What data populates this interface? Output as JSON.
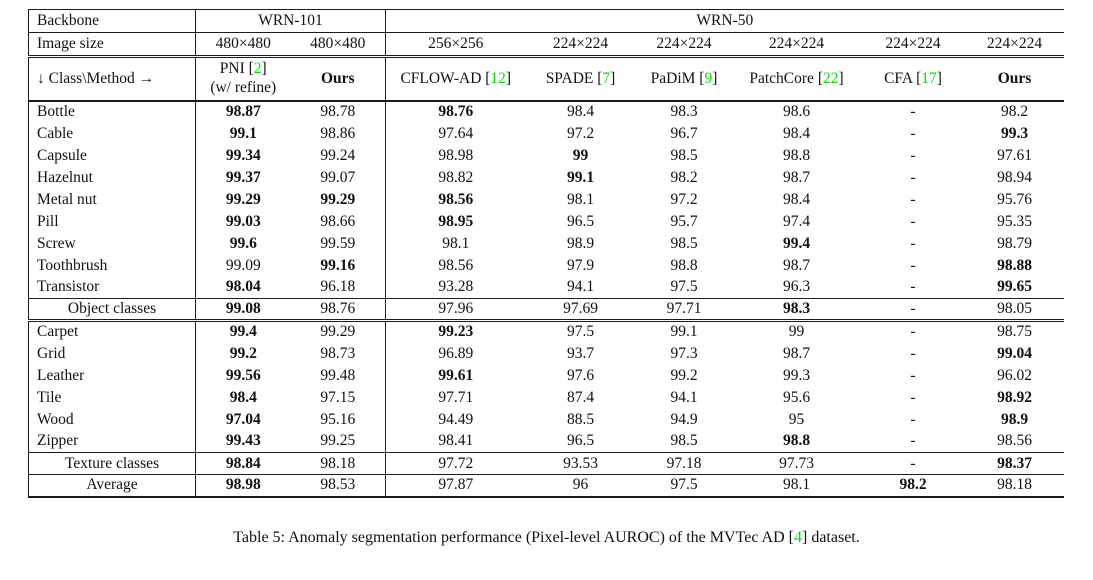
{
  "colors": {
    "citation_green": "#00dd00"
  },
  "table": {
    "header": {
      "backbone_label": "Backbone",
      "backbone_groups": [
        {
          "label": "WRN-101",
          "span": 2
        },
        {
          "label": "WRN-50",
          "span": 6
        }
      ],
      "image_size_label": "Image size",
      "image_sizes": [
        "480×480",
        "480×480",
        "256×256",
        "224×224",
        "224×224",
        "224×224",
        "224×224",
        "224×224"
      ],
      "class_method_label": "↓ Class\\Method →",
      "methods": [
        {
          "label": "PNI",
          "cite": "2",
          "extra": "(w/ refine)",
          "bold": false
        },
        {
          "label": "Ours",
          "cite": "",
          "extra": "",
          "bold": true
        },
        {
          "label": "CFLOW-AD",
          "cite": "12",
          "extra": "",
          "bold": false
        },
        {
          "label": "SPADE",
          "cite": "7",
          "extra": "",
          "bold": false
        },
        {
          "label": "PaDiM",
          "cite": "9",
          "extra": "",
          "bold": false
        },
        {
          "label": "PatchCore",
          "cite": "22",
          "extra": "",
          "bold": false
        },
        {
          "label": "CFA",
          "cite": "17",
          "extra": "",
          "bold": false
        },
        {
          "label": "Ours",
          "cite": "",
          "extra": "",
          "bold": true
        }
      ]
    },
    "rows": [
      {
        "label": "Bottle",
        "kind": "class",
        "sep": "",
        "values": [
          "98.87",
          "98.78",
          "98.76",
          "98.4",
          "98.3",
          "98.6",
          "-",
          "98.2"
        ],
        "bold": [
          1,
          0,
          1,
          0,
          0,
          0,
          0,
          0
        ]
      },
      {
        "label": "Cable",
        "kind": "class",
        "sep": "",
        "values": [
          "99.1",
          "98.86",
          "97.64",
          "97.2",
          "96.7",
          "98.4",
          "-",
          "99.3"
        ],
        "bold": [
          1,
          0,
          0,
          0,
          0,
          0,
          0,
          1
        ]
      },
      {
        "label": "Capsule",
        "kind": "class",
        "sep": "",
        "values": [
          "99.34",
          "99.24",
          "98.98",
          "99",
          "98.5",
          "98.8",
          "-",
          "97.61"
        ],
        "bold": [
          1,
          0,
          0,
          1,
          0,
          0,
          0,
          0
        ]
      },
      {
        "label": "Hazelnut",
        "kind": "class",
        "sep": "",
        "values": [
          "99.37",
          "99.07",
          "98.82",
          "99.1",
          "98.2",
          "98.7",
          "-",
          "98.94"
        ],
        "bold": [
          1,
          0,
          0,
          1,
          0,
          0,
          0,
          0
        ]
      },
      {
        "label": "Metal nut",
        "kind": "class",
        "sep": "",
        "values": [
          "99.29",
          "99.29",
          "98.56",
          "98.1",
          "97.2",
          "98.4",
          "-",
          "95.76"
        ],
        "bold": [
          1,
          1,
          1,
          0,
          0,
          0,
          0,
          0
        ]
      },
      {
        "label": "Pill",
        "kind": "class",
        "sep": "",
        "values": [
          "99.03",
          "98.66",
          "98.95",
          "96.5",
          "95.7",
          "97.4",
          "-",
          "95.35"
        ],
        "bold": [
          1,
          0,
          1,
          0,
          0,
          0,
          0,
          0
        ]
      },
      {
        "label": "Screw",
        "kind": "class",
        "sep": "",
        "values": [
          "99.6",
          "99.59",
          "98.1",
          "98.9",
          "98.5",
          "99.4",
          "-",
          "98.79"
        ],
        "bold": [
          1,
          0,
          0,
          0,
          0,
          1,
          0,
          0
        ]
      },
      {
        "label": "Toothbrush",
        "kind": "class",
        "sep": "",
        "values": [
          "99.09",
          "99.16",
          "98.56",
          "97.9",
          "98.8",
          "98.7",
          "-",
          "98.88"
        ],
        "bold": [
          0,
          1,
          0,
          0,
          0,
          0,
          0,
          1
        ]
      },
      {
        "label": "Transistor",
        "kind": "class",
        "sep": "thin",
        "values": [
          "98.04",
          "96.18",
          "93.28",
          "94.1",
          "97.5",
          "96.3",
          "-",
          "99.65"
        ],
        "bold": [
          1,
          0,
          0,
          0,
          0,
          0,
          0,
          1
        ]
      },
      {
        "label": "Object classes",
        "kind": "summary",
        "sep": "double",
        "values": [
          "99.08",
          "98.76",
          "97.96",
          "97.69",
          "97.71",
          "98.3",
          "-",
          "98.05"
        ],
        "bold": [
          1,
          0,
          0,
          0,
          0,
          1,
          0,
          0
        ]
      },
      {
        "label": "Carpet",
        "kind": "class",
        "sep": "",
        "values": [
          "99.4",
          "99.29",
          "99.23",
          "97.5",
          "99.1",
          "99",
          "-",
          "98.75"
        ],
        "bold": [
          1,
          0,
          1,
          0,
          0,
          0,
          0,
          0
        ]
      },
      {
        "label": "Grid",
        "kind": "class",
        "sep": "",
        "values": [
          "99.2",
          "98.73",
          "96.89",
          "93.7",
          "97.3",
          "98.7",
          "-",
          "99.04"
        ],
        "bold": [
          1,
          0,
          0,
          0,
          0,
          0,
          0,
          1
        ]
      },
      {
        "label": "Leather",
        "kind": "class",
        "sep": "",
        "values": [
          "99.56",
          "99.48",
          "99.61",
          "97.6",
          "99.2",
          "99.3",
          "-",
          "96.02"
        ],
        "bold": [
          1,
          0,
          1,
          0,
          0,
          0,
          0,
          0
        ]
      },
      {
        "label": "Tile",
        "kind": "class",
        "sep": "",
        "values": [
          "98.4",
          "97.15",
          "97.71",
          "87.4",
          "94.1",
          "95.6",
          "-",
          "98.92"
        ],
        "bold": [
          1,
          0,
          0,
          0,
          0,
          0,
          0,
          1
        ]
      },
      {
        "label": "Wood",
        "kind": "class",
        "sep": "",
        "values": [
          "97.04",
          "95.16",
          "94.49",
          "88.5",
          "94.9",
          "95",
          "-",
          "98.9"
        ],
        "bold": [
          1,
          0,
          0,
          0,
          0,
          0,
          0,
          1
        ]
      },
      {
        "label": "Zipper",
        "kind": "class",
        "sep": "thin",
        "values": [
          "99.43",
          "99.25",
          "98.41",
          "96.5",
          "98.5",
          "98.8",
          "-",
          "98.56"
        ],
        "bold": [
          1,
          0,
          0,
          0,
          0,
          1,
          0,
          0
        ]
      },
      {
        "label": "Texture classes",
        "kind": "summary",
        "sep": "thin",
        "values": [
          "98.84",
          "98.18",
          "97.72",
          "93.53",
          "97.18",
          "97.73",
          "-",
          "98.37"
        ],
        "bold": [
          1,
          0,
          0,
          0,
          0,
          0,
          0,
          1
        ]
      },
      {
        "label": "Average",
        "kind": "summary",
        "sep": "",
        "values": [
          "98.98",
          "98.53",
          "97.87",
          "96",
          "97.5",
          "98.1",
          "98.2",
          "98.18"
        ],
        "bold": [
          1,
          0,
          0,
          0,
          0,
          0,
          1,
          0
        ]
      }
    ]
  },
  "caption": {
    "prefix": "Table 5: Anomaly segmentation performance (Pixel-level AUROC) of the MVTec AD [",
    "cite": "4",
    "suffix": "] dataset."
  }
}
